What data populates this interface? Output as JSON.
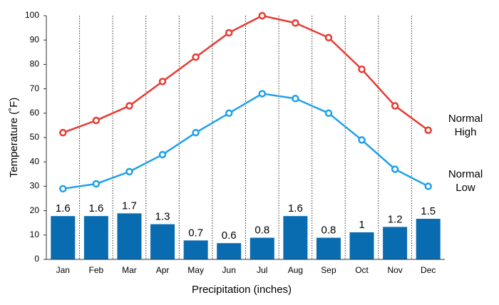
{
  "chart_data": {
    "type": "combo",
    "x_label": "Precipitation (inches)",
    "y_label": "Temperature (˚F)",
    "categories": [
      "Jan",
      "Feb",
      "Mar",
      "Apr",
      "May",
      "Jun",
      "Jul",
      "Aug",
      "Sep",
      "Oct",
      "Nov",
      "Dec"
    ],
    "ylim": [
      0,
      100
    ],
    "yticks": [
      0,
      10,
      20,
      30,
      40,
      50,
      60,
      70,
      80,
      90,
      100
    ],
    "y2lim": [
      0,
      9
    ],
    "series": [
      {
        "type": "bar",
        "axis": "y2",
        "color": "#0a6cb0",
        "values": [
          1.6,
          1.6,
          1.7,
          1.3,
          0.7,
          0.6,
          0.8,
          1.6,
          0.8,
          1,
          1.2,
          1.5
        ]
      },
      {
        "type": "line",
        "name": "Normal High",
        "color": "#e83a32",
        "values": [
          52,
          57,
          63,
          73,
          83,
          93,
          100,
          97,
          91,
          78,
          63,
          53
        ]
      },
      {
        "type": "line",
        "name": "Normal Low",
        "color": "#1ea0ea",
        "values": [
          29,
          31,
          36,
          43,
          52,
          60,
          68,
          66,
          60,
          49,
          37,
          30
        ]
      }
    ]
  }
}
